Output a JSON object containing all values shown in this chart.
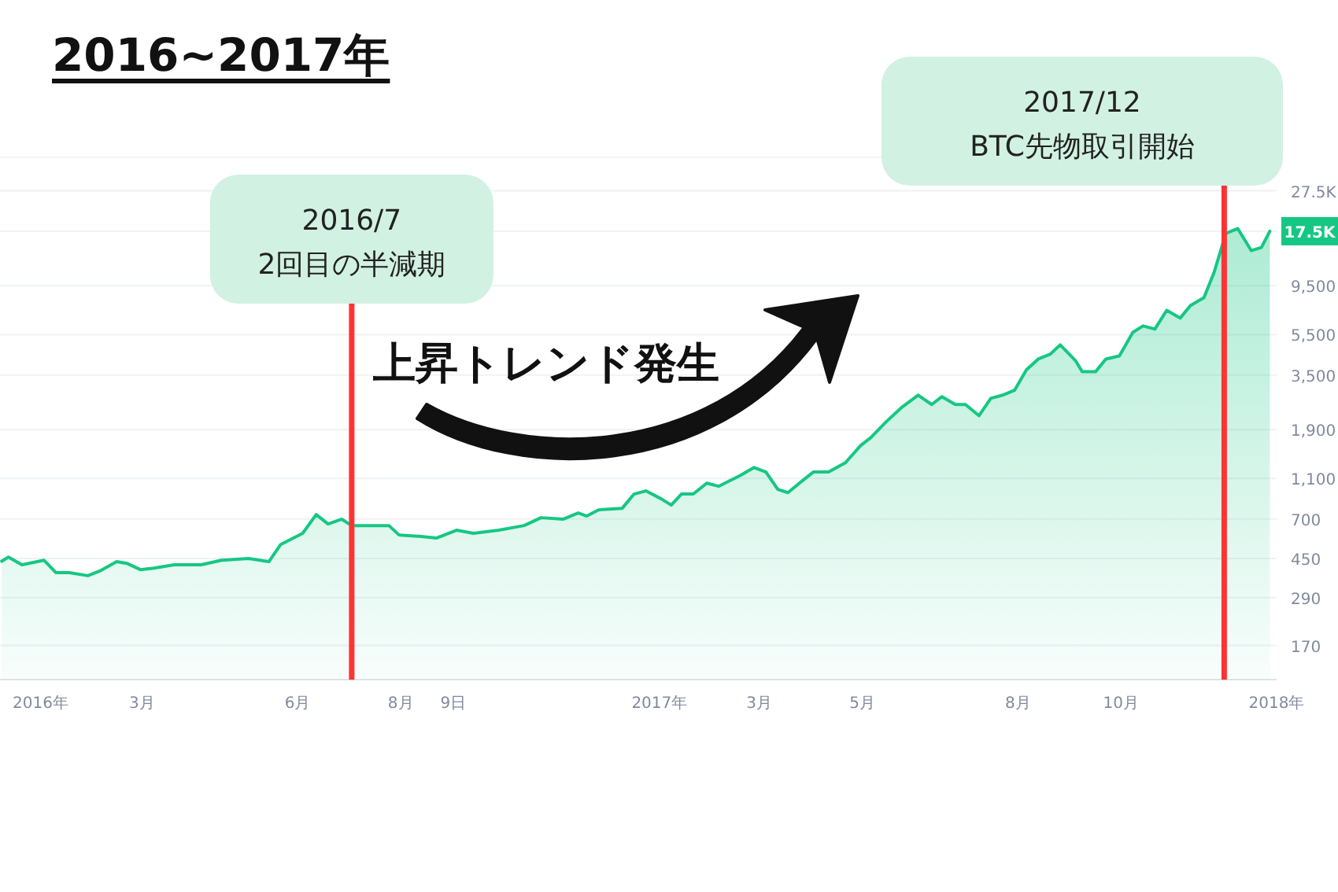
{
  "chart_data": {
    "type": "area",
    "title": "2016~2017年",
    "annotations": [
      "上昇トレンド発生"
    ],
    "log": "y",
    "grid": "y",
    "marker": "none",
    "xlim": [
      "2015-12-08",
      "2018-01-01"
    ],
    "ylim": [
      116,
      40000
    ],
    "xticks": [
      {
        "value": "2016-01-01",
        "label": "2016年"
      },
      {
        "value": "2016-03-01",
        "label": "3月"
      },
      {
        "value": "2016-06-01",
        "label": "6月"
      },
      {
        "value": "2016-08-01",
        "label": "8月"
      },
      {
        "value": "2016-09-01",
        "label": "9日"
      },
      {
        "value": "2017-01-01",
        "label": "2017年"
      },
      {
        "value": "2017-03-01",
        "label": "3月"
      },
      {
        "value": "2017-05-01",
        "label": "5月"
      },
      {
        "value": "2017-08-01",
        "label": "8月"
      },
      {
        "value": "2017-10-01",
        "label": "10月"
      },
      {
        "value": "2018-01-01",
        "label": "2018年"
      }
    ],
    "yticks": [
      {
        "value": 27500,
        "label": "27.5K"
      },
      {
        "value": 17500,
        "label": "17.5K"
      },
      {
        "value": 9500,
        "label": "9,500"
      },
      {
        "value": 5500,
        "label": "5,500"
      },
      {
        "value": 3500,
        "label": "3,500"
      },
      {
        "value": 1900,
        "label": "1,900"
      },
      {
        "value": 1100,
        "label": "1,100"
      },
      700,
      450,
      290,
      170
    ],
    "ref_lines": [
      {
        "axis": "x",
        "value": "2016-07-03",
        "label": "2016/7\n2回目の半減期",
        "color": "#ff3333"
      },
      {
        "axis": "x",
        "value": "2017-12-01",
        "label": "2017/12\nBTC先物取引開始",
        "color": "#ff3333"
      }
    ],
    "series": [
      {
        "color": "#16c784",
        "x": [
          "2015-12-09",
          "2015-12-13",
          "2015-12-21",
          "2016-01-03",
          "2016-01-10",
          "2016-01-18",
          "2016-01-29",
          "2016-02-05",
          "2016-02-15",
          "2016-02-21",
          "2016-02-29",
          "2016-03-08",
          "2016-03-20",
          "2016-04-05",
          "2016-04-17",
          "2016-05-03",
          "2016-05-15",
          "2016-05-22",
          "2016-06-04",
          "2016-06-12",
          "2016-06-19",
          "2016-06-27",
          "2016-07-03",
          "2016-07-10",
          "2016-07-25",
          "2016-07-31",
          "2016-08-13",
          "2016-08-22",
          "2016-09-03",
          "2016-09-13",
          "2016-09-28",
          "2016-10-13",
          "2016-10-23",
          "2016-11-05",
          "2016-11-14",
          "2016-11-19",
          "2016-11-26",
          "2016-12-10",
          "2016-12-17",
          "2016-12-24",
          "2017-01-02",
          "2017-01-08",
          "2017-01-14",
          "2017-01-21",
          "2017-01-29",
          "2017-02-05",
          "2017-02-18",
          "2017-02-26",
          "2017-03-05",
          "2017-03-12",
          "2017-03-18",
          "2017-03-27",
          "2017-04-02",
          "2017-04-11",
          "2017-04-21",
          "2017-04-30",
          "2017-05-06",
          "2017-05-15",
          "2017-05-24",
          "2017-06-03",
          "2017-06-11",
          "2017-06-17",
          "2017-06-25",
          "2017-07-01",
          "2017-07-09",
          "2017-07-16",
          "2017-07-23",
          "2017-07-30",
          "2017-08-06",
          "2017-08-13",
          "2017-08-20",
          "2017-08-26",
          "2017-09-04",
          "2017-09-08",
          "2017-09-16",
          "2017-09-22",
          "2017-09-30",
          "2017-10-08",
          "2017-10-14",
          "2017-10-21",
          "2017-10-28",
          "2017-11-05",
          "2017-11-11",
          "2017-11-19",
          "2017-11-25",
          "2017-12-02",
          "2017-12-09",
          "2017-12-17",
          "2017-12-23",
          "2017-12-28"
        ],
        "values": [
          436,
          457,
          419,
          441,
          384,
          384,
          371,
          391,
          434,
          426,
          397,
          404,
          419,
          419,
          441,
          450,
          434,
          526,
          596,
          735,
          662,
          698,
          650,
          650,
          650,
          585,
          575,
          565,
          617,
          596,
          617,
          650,
          710,
          698,
          748,
          723,
          775,
          789,
          925,
          958,
          877,
          817,
          925,
          925,
          1045,
          1009,
          1140,
          1245,
          1183,
          975,
          940,
          1081,
          1183,
          1183,
          1313,
          1592,
          1738,
          2073,
          2427,
          2798,
          2518,
          2748,
          2518,
          2518,
          2223,
          2698,
          2798,
          2951,
          3707,
          4188,
          4416,
          4909,
          4121,
          3640,
          3640,
          4188,
          4335,
          5646,
          6067,
          5852,
          7224,
          6622,
          7621,
          8318,
          11020,
          17100,
          18030,
          14090,
          14590,
          17500
        ]
      }
    ]
  }
}
